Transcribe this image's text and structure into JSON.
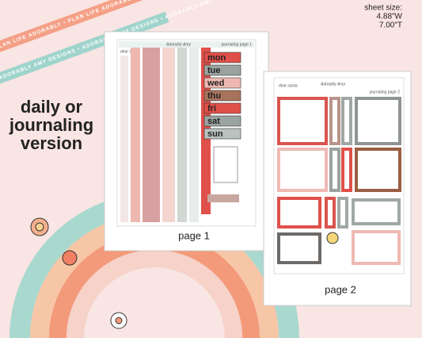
{
  "banner": {
    "ribbon_top": "PLAN LIFE ADORABLY • PLAN LIFE ADORABLY • PLAN LIFE ADORABLY",
    "ribbon_bottom": "ADORABLY AMY DESIGNS • ADORABLY AMY DESIGNS • ADORABLY AMY"
  },
  "sheet_size": {
    "label": "sheet size:",
    "width": "4.88\"W",
    "height": "7.00\"T"
  },
  "headline": {
    "line1": "daily or",
    "line2": "journaling",
    "line3": "version"
  },
  "page1": {
    "header_left": "dear santa",
    "brand": "Adorably Amy",
    "header_right": "journaling page 1",
    "days": [
      "mon",
      "tue",
      "wed",
      "thu",
      "fri",
      "sat",
      "sun"
    ],
    "caption": "page 1"
  },
  "page2": {
    "header_left": "dear santa",
    "brand": "Adorably Amy",
    "header_right": "journaling page 2",
    "caption": "page 2"
  }
}
